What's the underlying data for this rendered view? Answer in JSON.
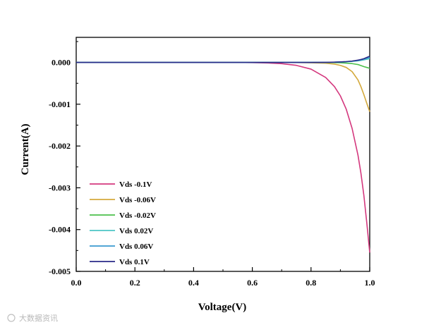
{
  "chart_data": {
    "type": "line",
    "xlabel": "Voltage(V)",
    "ylabel": "Current(A)",
    "xlim": [
      0.0,
      1.0
    ],
    "ylim": [
      -0.005,
      0.0006
    ],
    "xticks": [
      0.0,
      0.2,
      0.4,
      0.6,
      0.8,
      1.0
    ],
    "xtick_labels": [
      "0.0",
      "0.2",
      "0.4",
      "0.6",
      "0.8",
      "1.0"
    ],
    "yticks": [
      0.0,
      -0.001,
      -0.002,
      -0.003,
      -0.004,
      -0.005
    ],
    "ytick_labels": [
      "0.000",
      "-0.001",
      "-0.002",
      "-0.003",
      "-0.004",
      "-0.005"
    ],
    "grid": false,
    "legend_position": "bottom-left",
    "x": [
      0.0,
      0.1,
      0.2,
      0.3,
      0.4,
      0.5,
      0.55,
      0.6,
      0.65,
      0.7,
      0.75,
      0.8,
      0.85,
      0.88,
      0.9,
      0.92,
      0.94,
      0.96,
      0.97,
      0.98,
      0.99,
      1.0
    ],
    "series": [
      {
        "name": "Vds -0.1V",
        "color": "#d4387e",
        "values": [
          0,
          0,
          0,
          0,
          0,
          0,
          0,
          -5e-06,
          -1.2e-05,
          -3e-05,
          -7e-05,
          -0.00016,
          -0.00036,
          -0.00058,
          -0.0008,
          -0.00112,
          -0.00158,
          -0.00222,
          -0.00265,
          -0.00318,
          -0.00384,
          -0.00455
        ]
      },
      {
        "name": "Vds -0.06V",
        "color": "#d4a93c",
        "values": [
          0,
          0,
          0,
          0,
          0,
          0,
          0,
          0,
          0,
          0,
          -2e-06,
          -8e-06,
          -2e-05,
          -4e-05,
          -7e-05,
          -0.00012,
          -0.00022,
          -0.00042,
          -0.00058,
          -0.00077,
          -0.00098,
          -0.00118
        ]
      },
      {
        "name": "Vds -0.02V",
        "color": "#4cc14c",
        "values": [
          0,
          0,
          0,
          0,
          0,
          0,
          0,
          0,
          0,
          0,
          0,
          0,
          -2e-06,
          -5e-06,
          -9e-06,
          -1.6e-05,
          -2.8e-05,
          -5e-05,
          -7.5e-05,
          -0.0001,
          -0.00012,
          -0.00014
        ]
      },
      {
        "name": "Vds 0.02V",
        "color": "#4cc4c4",
        "values": [
          0,
          0,
          0,
          0,
          0,
          0,
          0,
          0,
          0,
          0,
          0,
          0,
          2e-06,
          5e-06,
          9e-06,
          1.5e-05,
          2.5e-05,
          3.8e-05,
          4.8e-05,
          6e-05,
          7.5e-05,
          9e-05
        ]
      },
      {
        "name": "Vds 0.06V",
        "color": "#3a9ad0",
        "values": [
          0,
          0,
          0,
          0,
          0,
          0,
          0,
          0,
          0,
          0,
          0,
          0,
          3e-06,
          6e-06,
          1.1e-05,
          1.8e-05,
          3e-05,
          4.8e-05,
          6.2e-05,
          8e-05,
          0.0001,
          0.00012
        ]
      },
      {
        "name": "Vds 0.1V",
        "color": "#2a2a88",
        "values": [
          0,
          0,
          0,
          0,
          0,
          0,
          0,
          0,
          0,
          0,
          0,
          0,
          3e-06,
          7e-06,
          1.2e-05,
          2e-05,
          3.3e-05,
          5.5e-05,
          7e-05,
          9e-05,
          0.00012,
          0.00015
        ]
      }
    ]
  },
  "watermark": {
    "text": "大数据资讯"
  }
}
